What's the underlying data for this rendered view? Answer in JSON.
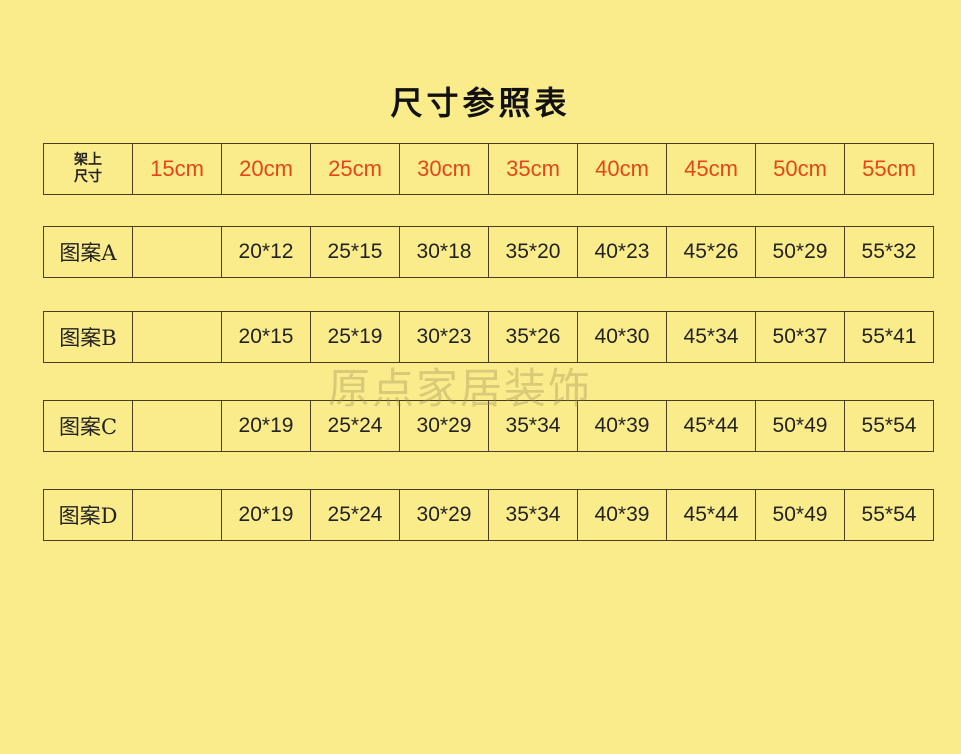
{
  "title": "尺寸参照表",
  "header": {
    "label_line1": "架上",
    "label_line2": "尺寸",
    "sizes": [
      "15cm",
      "20cm",
      "25cm",
      "30cm",
      "35cm",
      "40cm",
      "45cm",
      "50cm",
      "55cm"
    ]
  },
  "rows": [
    {
      "label": "图案A",
      "values": [
        "",
        "20*12",
        "25*15",
        "30*18",
        "35*20",
        "40*23",
        "45*26",
        "50*29",
        "55*32"
      ]
    },
    {
      "label": "图案B",
      "values": [
        "",
        "20*15",
        "25*19",
        "30*23",
        "35*26",
        "40*30",
        "45*34",
        "50*37",
        "55*41"
      ]
    },
    {
      "label": "图案C",
      "values": [
        "",
        "20*19",
        "25*24",
        "30*29",
        "35*34",
        "40*39",
        "45*44",
        "50*49",
        "55*54"
      ]
    },
    {
      "label": "图案D",
      "values": [
        "",
        "20*19",
        "25*24",
        "30*29",
        "35*34",
        "40*39",
        "45*44",
        "50*49",
        "55*54"
      ]
    }
  ],
  "watermark": "原点家居装饰",
  "colors": {
    "background": "#fbec8b",
    "size_text": "#e2461a",
    "border": "#4a3d20"
  }
}
